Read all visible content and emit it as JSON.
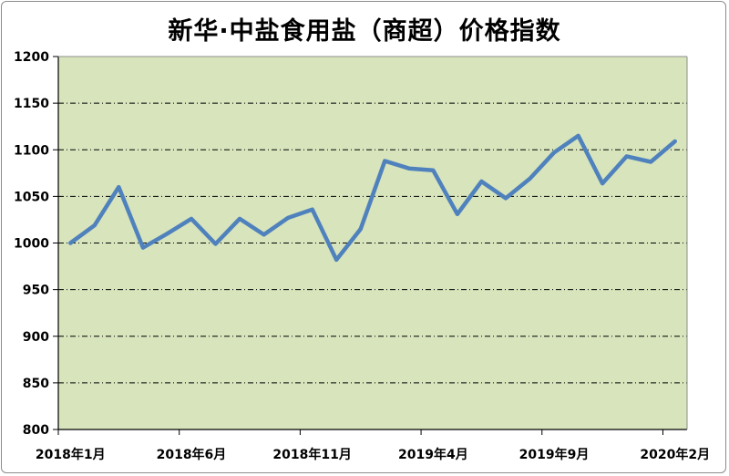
{
  "chart_data": {
    "type": "line",
    "title": "新华·中盐食用盐（商超）价格指数",
    "xlabel": "",
    "ylabel": "",
    "ylim": [
      800,
      1200
    ],
    "y_ticks": [
      800,
      850,
      900,
      950,
      1000,
      1050,
      1100,
      1150,
      1200
    ],
    "x_tick_labels": [
      "2018年1月",
      "2018年6月",
      "2018年11月",
      "2019年4月",
      "2019年9月",
      "2020年2月"
    ],
    "x": [
      "2018年1月",
      "2018年2月",
      "2018年3月",
      "2018年4月",
      "2018年5月",
      "2018年6月",
      "2018年7月",
      "2018年8月",
      "2018年9月",
      "2018年10月",
      "2018年11月",
      "2018年12月",
      "2019年1月",
      "2019年2月",
      "2019年3月",
      "2019年4月",
      "2019年5月",
      "2019年6月",
      "2019年7月",
      "2019年8月",
      "2019年9月",
      "2019年10月",
      "2019年11月",
      "2019年12月",
      "2020年1月",
      "2020年2月"
    ],
    "series": [
      {
        "values": [
          1000,
          1019,
          1060,
          995,
          1010,
          1026,
          999,
          1026,
          1009,
          1027,
          1036,
          982,
          1015,
          1088,
          1080,
          1078,
          1031,
          1066,
          1048,
          1069,
          1097,
          1115,
          1064,
          1093,
          1087,
          1109
        ]
      }
    ],
    "grid": true,
    "colors": {
      "line": "#4f81bd",
      "plot_bg": "#d7e4bc"
    }
  }
}
